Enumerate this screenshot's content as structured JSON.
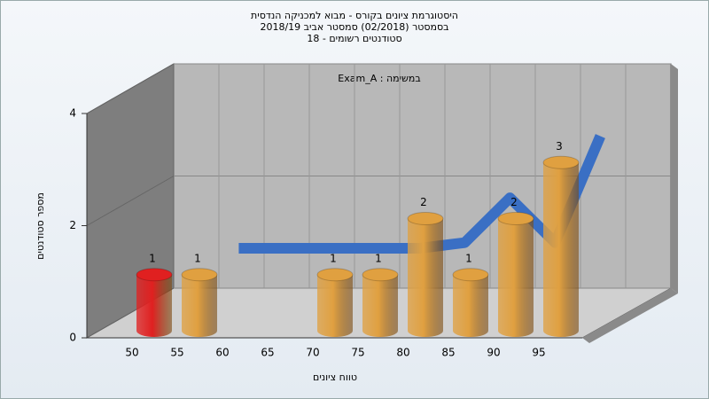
{
  "chart_data": {
    "type": "bar",
    "title": "היסטוגרמת ציונים בקורס - מבוא למכניקה הנדסית",
    "subtitle": [
      "בסמסטר (02/2018) סמסטר אביב 2018/19",
      "סטודנטים רשומים - 18"
    ],
    "annotation": "במשימה : Exam_A",
    "x_label": "טווח ציונים",
    "y_label": "מספר סטודנטים",
    "categories": [
      "50",
      "55",
      "60",
      "65",
      "70",
      "75",
      "80",
      "85",
      "90",
      "95"
    ],
    "series": [
      {
        "type": "bar",
        "colors": [
          "#e02020",
          "#e0a040",
          "#e0a040",
          "#e0a040",
          "#e0a040",
          "#e0a040",
          "#e0a040",
          "#e0a040",
          "#e0a040",
          "#e0a040"
        ],
        "values": [
          1,
          1,
          0,
          0,
          1,
          1,
          2,
          1,
          2,
          3
        ]
      },
      {
        "type": "line",
        "color": "#3a6fc4",
        "values": [
          null,
          0.8,
          0.8,
          0.8,
          0.8,
          0.8,
          0.9,
          1.7,
          0.9,
          2.8
        ]
      }
    ],
    "ylim": [
      0,
      4
    ],
    "yticks": [
      0,
      2,
      4
    ],
    "grid": true
  }
}
